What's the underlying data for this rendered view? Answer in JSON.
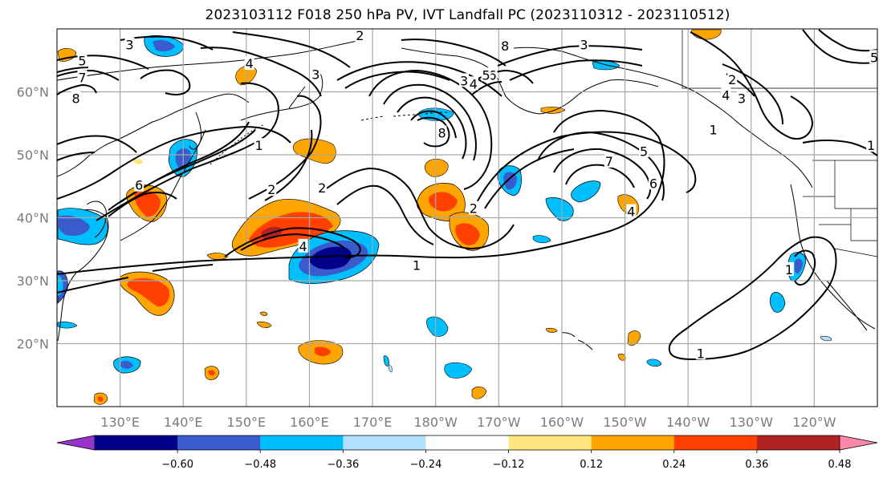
{
  "title": "2023103112 F018 250 hPa PV, IVT Landfall PC (2023110312 - 2023110512)",
  "map": {
    "lon_range": [
      120,
      250
    ],
    "lat_range": [
      10,
      70
    ],
    "lat_ticks": [
      {
        "value": 20,
        "label": "20°N"
      },
      {
        "value": 30,
        "label": "30°N"
      },
      {
        "value": 40,
        "label": "40°N"
      },
      {
        "value": 50,
        "label": "50°N"
      },
      {
        "value": 60,
        "label": "60°N"
      }
    ],
    "lon_ticks": [
      {
        "value": 130,
        "label": "130°E"
      },
      {
        "value": 140,
        "label": "140°E"
      },
      {
        "value": 150,
        "label": "150°E"
      },
      {
        "value": 160,
        "label": "160°E"
      },
      {
        "value": 170,
        "label": "170°E"
      },
      {
        "value": 180,
        "label": "180°W"
      },
      {
        "value": 190,
        "label": "170°W"
      },
      {
        "value": 200,
        "label": "160°W"
      },
      {
        "value": 210,
        "label": "150°W"
      },
      {
        "value": 220,
        "label": "140°W"
      },
      {
        "value": 230,
        "label": "130°W"
      },
      {
        "value": 240,
        "label": "120°W"
      }
    ],
    "grid": true,
    "contour_color": "#000000",
    "coast_color": "#000000"
  },
  "colorbar": {
    "colors": [
      "#9933cc",
      "#00008b",
      "#3a5bcc",
      "#00bfff",
      "#b0e0ff",
      "#ffffff",
      "#ffe680",
      "#ffa500",
      "#ff4000",
      "#b22222",
      "#ff88aa"
    ],
    "tick_labels": [
      "−0.60",
      "−0.48",
      "−0.36",
      "−0.24",
      "−0.12",
      "0.12",
      "0.24",
      "0.36",
      "0.48",
      "0.60"
    ],
    "extend": "both"
  },
  "contour_labels": [
    {
      "text": "3",
      "lon": 131.5,
      "lat": 67.5
    },
    {
      "text": "5",
      "lon": 124,
      "lat": 65
    },
    {
      "text": "7",
      "lon": 124,
      "lat": 62.3
    },
    {
      "text": "8",
      "lon": 123,
      "lat": 59
    },
    {
      "text": "4",
      "lon": 150.5,
      "lat": 64.5
    },
    {
      "text": "3",
      "lon": 161,
      "lat": 62.8
    },
    {
      "text": "2",
      "lon": 168,
      "lat": 69
    },
    {
      "text": "1",
      "lon": 152,
      "lat": 51.5
    },
    {
      "text": "2",
      "lon": 154,
      "lat": 44.5
    },
    {
      "text": "2",
      "lon": 162,
      "lat": 44.8
    },
    {
      "text": "6",
      "lon": 133,
      "lat": 45.2
    },
    {
      "text": "4",
      "lon": 159,
      "lat": 35.5
    },
    {
      "text": "1",
      "lon": 177,
      "lat": 32.5
    },
    {
      "text": "2",
      "lon": 186,
      "lat": 41.5
    },
    {
      "text": "8",
      "lon": 181,
      "lat": 53.5
    },
    {
      "text": "4",
      "lon": 186,
      "lat": 61.3
    },
    {
      "text": "3",
      "lon": 184.5,
      "lat": 61.8
    },
    {
      "text": "6",
      "lon": 189,
      "lat": 62.7
    },
    {
      "text": "5",
      "lon": 188,
      "lat": 62.7
    },
    {
      "text": "8",
      "lon": 191,
      "lat": 67.3
    },
    {
      "text": "3",
      "lon": 203.5,
      "lat": 67.5
    },
    {
      "text": "5",
      "lon": 213,
      "lat": 50.6
    },
    {
      "text": "7",
      "lon": 207.5,
      "lat": 49
    },
    {
      "text": "6",
      "lon": 214.5,
      "lat": 45.5
    },
    {
      "text": "4",
      "lon": 211,
      "lat": 41
    },
    {
      "text": "4",
      "lon": 226,
      "lat": 59.5
    },
    {
      "text": "3",
      "lon": 228.5,
      "lat": 59
    },
    {
      "text": "2",
      "lon": 227,
      "lat": 62
    },
    {
      "text": "1",
      "lon": 224,
      "lat": 54
    },
    {
      "text": "1",
      "lon": 249,
      "lat": 51.5
    },
    {
      "text": "5",
      "lon": 249.5,
      "lat": 65.5
    },
    {
      "text": "1",
      "lon": 222,
      "lat": 18.5
    },
    {
      "text": "1",
      "lon": 236,
      "lat": 31.8
    }
  ]
}
